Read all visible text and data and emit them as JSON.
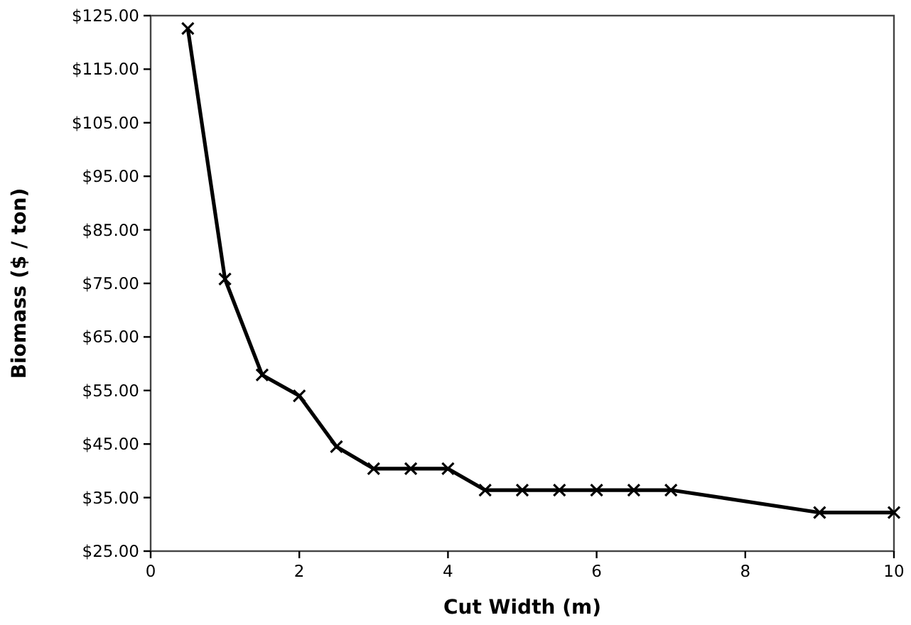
{
  "chart_data": {
    "type": "line",
    "xlabel": "Cut Width (m)",
    "ylabel": "Biomass ($ / ton)",
    "x": [
      0.5,
      1,
      1.5,
      2,
      2.5,
      3,
      3.5,
      4,
      4.5,
      5,
      5.5,
      6,
      6.5,
      7,
      9,
      10
    ],
    "series": [
      {
        "color": "#000000",
        "values": [
          122.6,
          75.8,
          57.9,
          54.0,
          44.5,
          40.4,
          40.4,
          40.4,
          36.4,
          36.4,
          36.4,
          36.4,
          36.4,
          36.4,
          32.2,
          32.2
        ]
      }
    ],
    "xlim": [
      0,
      10
    ],
    "xticks": [
      0,
      2,
      4,
      6,
      8,
      10
    ],
    "ylim": [
      25,
      125
    ],
    "yticks": [
      {
        "value": 25,
        "label": "$25.00"
      },
      {
        "value": 35,
        "label": "$35.00"
      },
      {
        "value": 45,
        "label": "$45.00"
      },
      {
        "value": 55,
        "label": "$55.00"
      },
      {
        "value": 65,
        "label": "$65.00"
      },
      {
        "value": 75,
        "label": "$75.00"
      },
      {
        "value": 85,
        "label": "$85.00"
      },
      {
        "value": 95,
        "label": "$95.00"
      },
      {
        "value": 105,
        "label": "$105.00"
      },
      {
        "value": 115,
        "label": "$115.00"
      },
      {
        "value": 125,
        "label": "$125.00"
      }
    ],
    "grid": false,
    "marker": "cross",
    "line_style": "solid"
  }
}
